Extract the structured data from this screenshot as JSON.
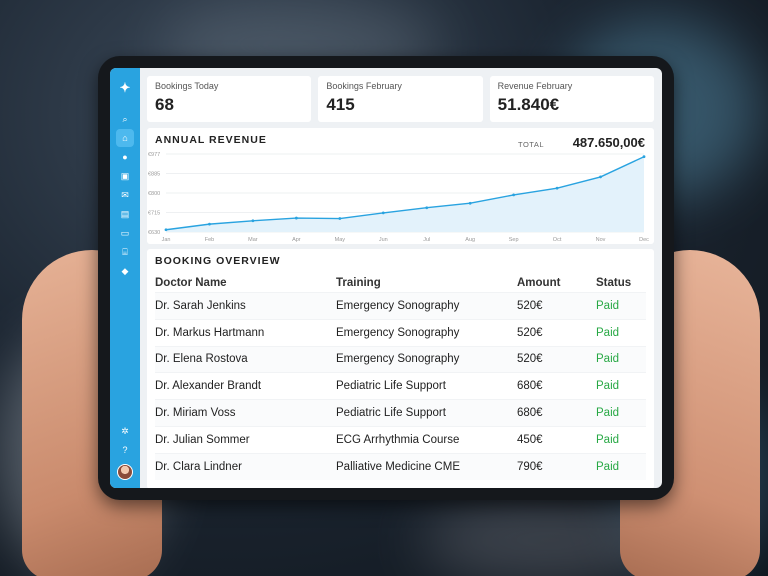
{
  "sidebar": {
    "logo": "✦",
    "items": [
      {
        "name": "search",
        "glyph": "⌕",
        "active": false
      },
      {
        "name": "dashboard",
        "glyph": "⌂",
        "active": true
      },
      {
        "name": "users",
        "glyph": "●",
        "active": false
      },
      {
        "name": "contacts",
        "glyph": "▣",
        "active": false
      },
      {
        "name": "mail",
        "glyph": "✉",
        "active": false
      },
      {
        "name": "documents",
        "glyph": "▤",
        "active": false
      },
      {
        "name": "courses",
        "glyph": "▭",
        "active": false
      },
      {
        "name": "bank",
        "glyph": "⌸",
        "active": false
      },
      {
        "name": "tags",
        "glyph": "◆",
        "active": false
      }
    ],
    "bottom": [
      {
        "name": "settings",
        "glyph": "✲"
      },
      {
        "name": "help",
        "glyph": "?"
      }
    ]
  },
  "stats": [
    {
      "label": "Bookings Today",
      "value": "68"
    },
    {
      "label": "Bookings February",
      "value": "415"
    },
    {
      "label": "Revenue February",
      "value": "51.840€"
    }
  ],
  "revenue": {
    "title": "ANNUAL REVENUE",
    "total_label": "TOTAL",
    "total_value": "487.650,00€"
  },
  "chart_data": {
    "type": "area",
    "x": [
      "Jan",
      "Feb",
      "Mar",
      "Apr",
      "May",
      "Jun",
      "Jul",
      "Aug",
      "Sep",
      "Oct",
      "Nov",
      "Dec"
    ],
    "y_ticks": [
      "€977",
      "€885",
      "€800",
      "€715",
      "€630"
    ],
    "ylim": [
      630,
      977
    ],
    "values": [
      640,
      665,
      680,
      692,
      690,
      715,
      738,
      758,
      795,
      825,
      875,
      965
    ],
    "color": "#29a3e0",
    "fill": "#e3f2fb",
    "grid": true
  },
  "bookings": {
    "title": "BOOKING OVERVIEW",
    "columns": [
      "Doctor Name",
      "Training",
      "Amount",
      "Status"
    ],
    "rows": [
      {
        "doctor": "Dr. Sarah Jenkins",
        "training": "Emergency Sonography",
        "amount": "520€",
        "status": "Paid"
      },
      {
        "doctor": "Dr. Markus Hartmann",
        "training": "Emergency Sonography",
        "amount": "520€",
        "status": "Paid"
      },
      {
        "doctor": "Dr. Elena Rostova",
        "training": "Emergency Sonography",
        "amount": "520€",
        "status": "Paid"
      },
      {
        "doctor": "Dr. Alexander Brandt",
        "training": "Pediatric Life Support",
        "amount": "680€",
        "status": "Paid"
      },
      {
        "doctor": "Dr. Miriam Voss",
        "training": "Pediatric Life Support",
        "amount": "680€",
        "status": "Paid"
      },
      {
        "doctor": "Dr. Julian Sommer",
        "training": "ECG Arrhythmia Course",
        "amount": "450€",
        "status": "Paid"
      },
      {
        "doctor": "Dr. Clara Lindner",
        "training": "Palliative Medicine CME",
        "amount": "790€",
        "status": "Paid"
      }
    ]
  }
}
